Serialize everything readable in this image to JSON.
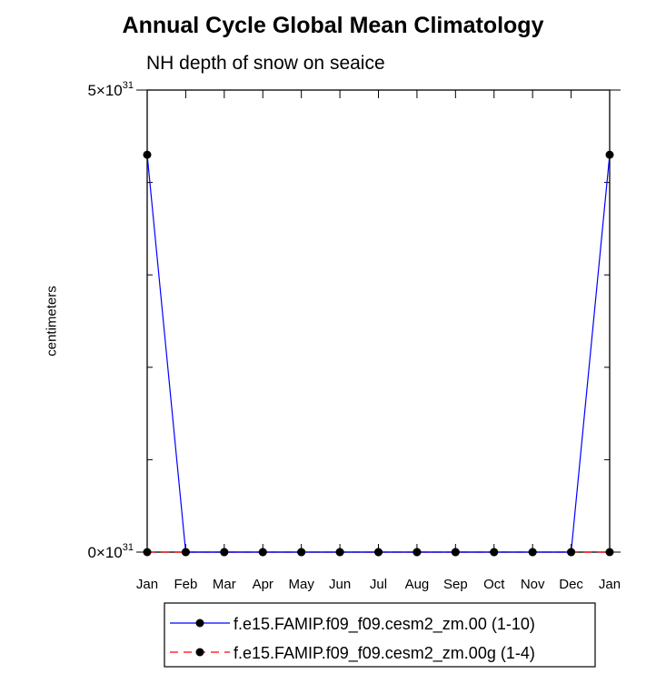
{
  "chart_data": {
    "type": "line",
    "title": "Annual Cycle Global Mean Climatology",
    "subtitle": "NH depth of snow on seaice",
    "ylabel": "centimeters",
    "xlabel": "",
    "categories": [
      "Jan",
      "Feb",
      "Mar",
      "Apr",
      "May",
      "Jun",
      "Jul",
      "Aug",
      "Sep",
      "Oct",
      "Nov",
      "Dec",
      "Jan"
    ],
    "ylim": [
      0,
      5e+31
    ],
    "y_tick_labels": [
      {
        "value": 0,
        "mantissa": "0",
        "exponent": "31"
      },
      {
        "value": 5e+31,
        "mantissa": "5",
        "exponent": "31"
      }
    ],
    "series": [
      {
        "name": "f.e15.FAMIP.f09_f09.cesm2_zm.00 (1-10)",
        "color": "#0000ff",
        "dash": "solid",
        "values": [
          4.3e+31,
          0,
          0,
          0,
          0,
          0,
          0,
          0,
          0,
          0,
          0,
          0,
          4.3e+31
        ]
      },
      {
        "name": "f.e15.FAMIP.f09_f09.cesm2_zm.00g (1-4)",
        "color": "#ff0000",
        "dash": "dashed",
        "values": [
          0,
          0,
          0,
          0,
          0,
          0,
          0,
          0,
          0,
          0,
          0,
          0,
          0
        ]
      }
    ],
    "marker_color": "#000000",
    "grid": false,
    "legend_position": "bottom"
  }
}
